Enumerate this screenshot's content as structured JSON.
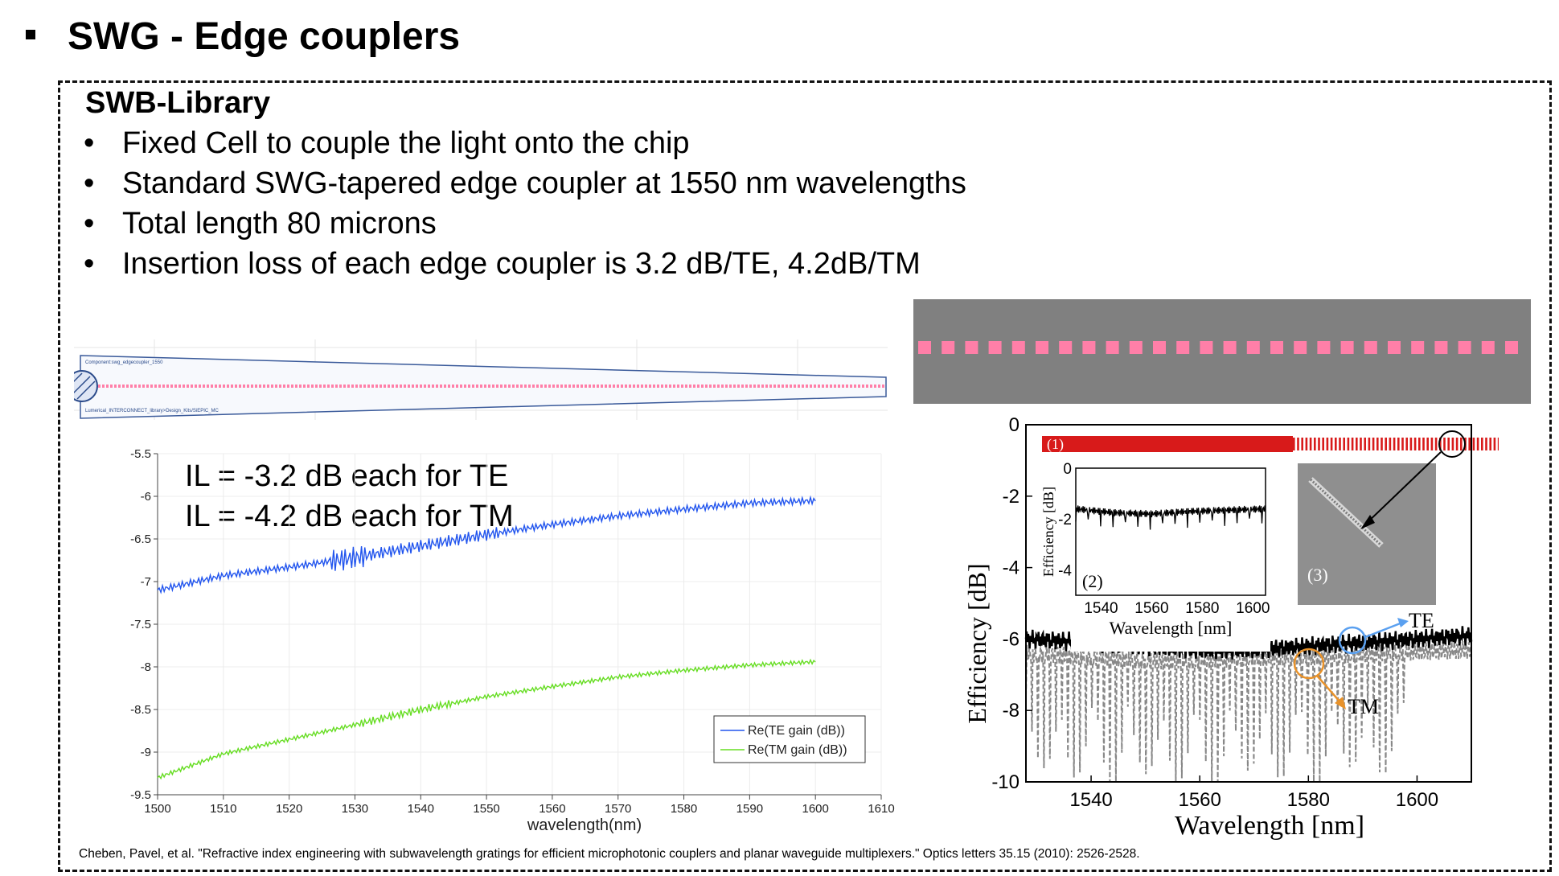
{
  "slide": {
    "title": "SWG - Edge couplers",
    "section_title": "SWB-Library",
    "bullets": [
      "Fixed Cell to couple the light onto the chip",
      "Standard SWG-tapered edge coupler at 1550 nm wavelengths",
      "Total length 80 microns",
      "Insertion loss of each edge coupler is 3.2 dB/TE, 4.2dB/TM"
    ],
    "bullet_glyph": "•",
    "citation": "Cheben, Pavel, et al. \"Refractive index engineering with subwavelength gratings for efficient microphotonic couplers and planar waveguide multiplexers.\" Optics letters 35.15 (2010): 2526-2528."
  },
  "layout_cell": {
    "label_top": "Component:swg_edgecoupler_1550",
    "label_bottom": "Lumerical_INTERCONNECT_library>Design_Kits/SiEPIC_MC"
  },
  "colors": {
    "te": "#2255ee",
    "tm": "#66dd22",
    "grating": "#ff7fa8",
    "gray_bg": "#808080",
    "red_taper": "#d81a1a"
  },
  "chart_data": [
    {
      "type": "line",
      "title": "",
      "xlabel": "wavelength(nm)",
      "ylabel": "",
      "xlim": [
        1500,
        1610
      ],
      "ylim": [
        -9.5,
        -5.5
      ],
      "x_ticks": [
        1500,
        1510,
        1520,
        1530,
        1540,
        1550,
        1560,
        1570,
        1580,
        1590,
        1600,
        1610
      ],
      "y_ticks": [
        -5.5,
        -6,
        -6.5,
        -7,
        -7.5,
        -8,
        -8.5,
        -9,
        -9.5
      ],
      "annotations": [
        "IL = -3.2 dB each for TE",
        "IL = -4.2 dB each for TM"
      ],
      "legend": "bottom-right",
      "x": [
        1500,
        1510,
        1520,
        1530,
        1540,
        1550,
        1560,
        1570,
        1580,
        1590,
        1600
      ],
      "series": [
        {
          "name": "Re(TE gain (dB))",
          "color": "#2255ee",
          "values": [
            -7.1,
            -6.93,
            -6.83,
            -6.72,
            -6.58,
            -6.45,
            -6.33,
            -6.23,
            -6.15,
            -6.08,
            -6.05
          ]
        },
        {
          "name": "Re(TM gain (dB))",
          "color": "#66dd22",
          "values": [
            -9.3,
            -9.02,
            -8.85,
            -8.68,
            -8.5,
            -8.35,
            -8.23,
            -8.12,
            -8.04,
            -7.98,
            -7.94
          ]
        }
      ]
    },
    {
      "type": "line",
      "title": "",
      "xlabel": "Wavelength [nm]",
      "ylabel": "Efficiency [dB]",
      "xlim": [
        1528,
        1610
      ],
      "ylim": [
        -10,
        0
      ],
      "x_ticks": [
        1540,
        1560,
        1580,
        1600
      ],
      "y_ticks": [
        0,
        -2,
        -4,
        -6,
        -8,
        -10
      ],
      "x": [
        1528,
        1540,
        1550,
        1560,
        1570,
        1580,
        1590,
        1600,
        1610
      ],
      "series": [
        {
          "name": "TE",
          "color": "#000000",
          "values": [
            -6.0,
            -6.1,
            -6.2,
            -6.3,
            -6.3,
            -6.2,
            -6.1,
            -6.0,
            -5.9
          ]
        },
        {
          "name": "TM",
          "color": "#888888",
          "values": [
            -6.4,
            -6.5,
            -6.6,
            -6.6,
            -6.5,
            -6.5,
            -6.4,
            -6.35,
            -6.3
          ]
        }
      ],
      "labels": {
        "panel1": "(1)",
        "panel2": "(2)",
        "panel3": "(3)",
        "te": "TE",
        "tm": "TM"
      },
      "inset": {
        "xlabel": "Wavelength [nm]",
        "ylabel": "Efficiency [dB]",
        "x_ticks": [
          1540,
          1560,
          1580,
          1600
        ],
        "y_ticks": [
          0,
          -2,
          -4
        ],
        "xlim": [
          1530,
          1605
        ],
        "ylim": [
          -5,
          0
        ],
        "x": [
          1530,
          1545,
          1560,
          1575,
          1590,
          1605
        ],
        "values": [
          -1.6,
          -1.75,
          -1.8,
          -1.7,
          -1.65,
          -1.6
        ]
      }
    }
  ]
}
